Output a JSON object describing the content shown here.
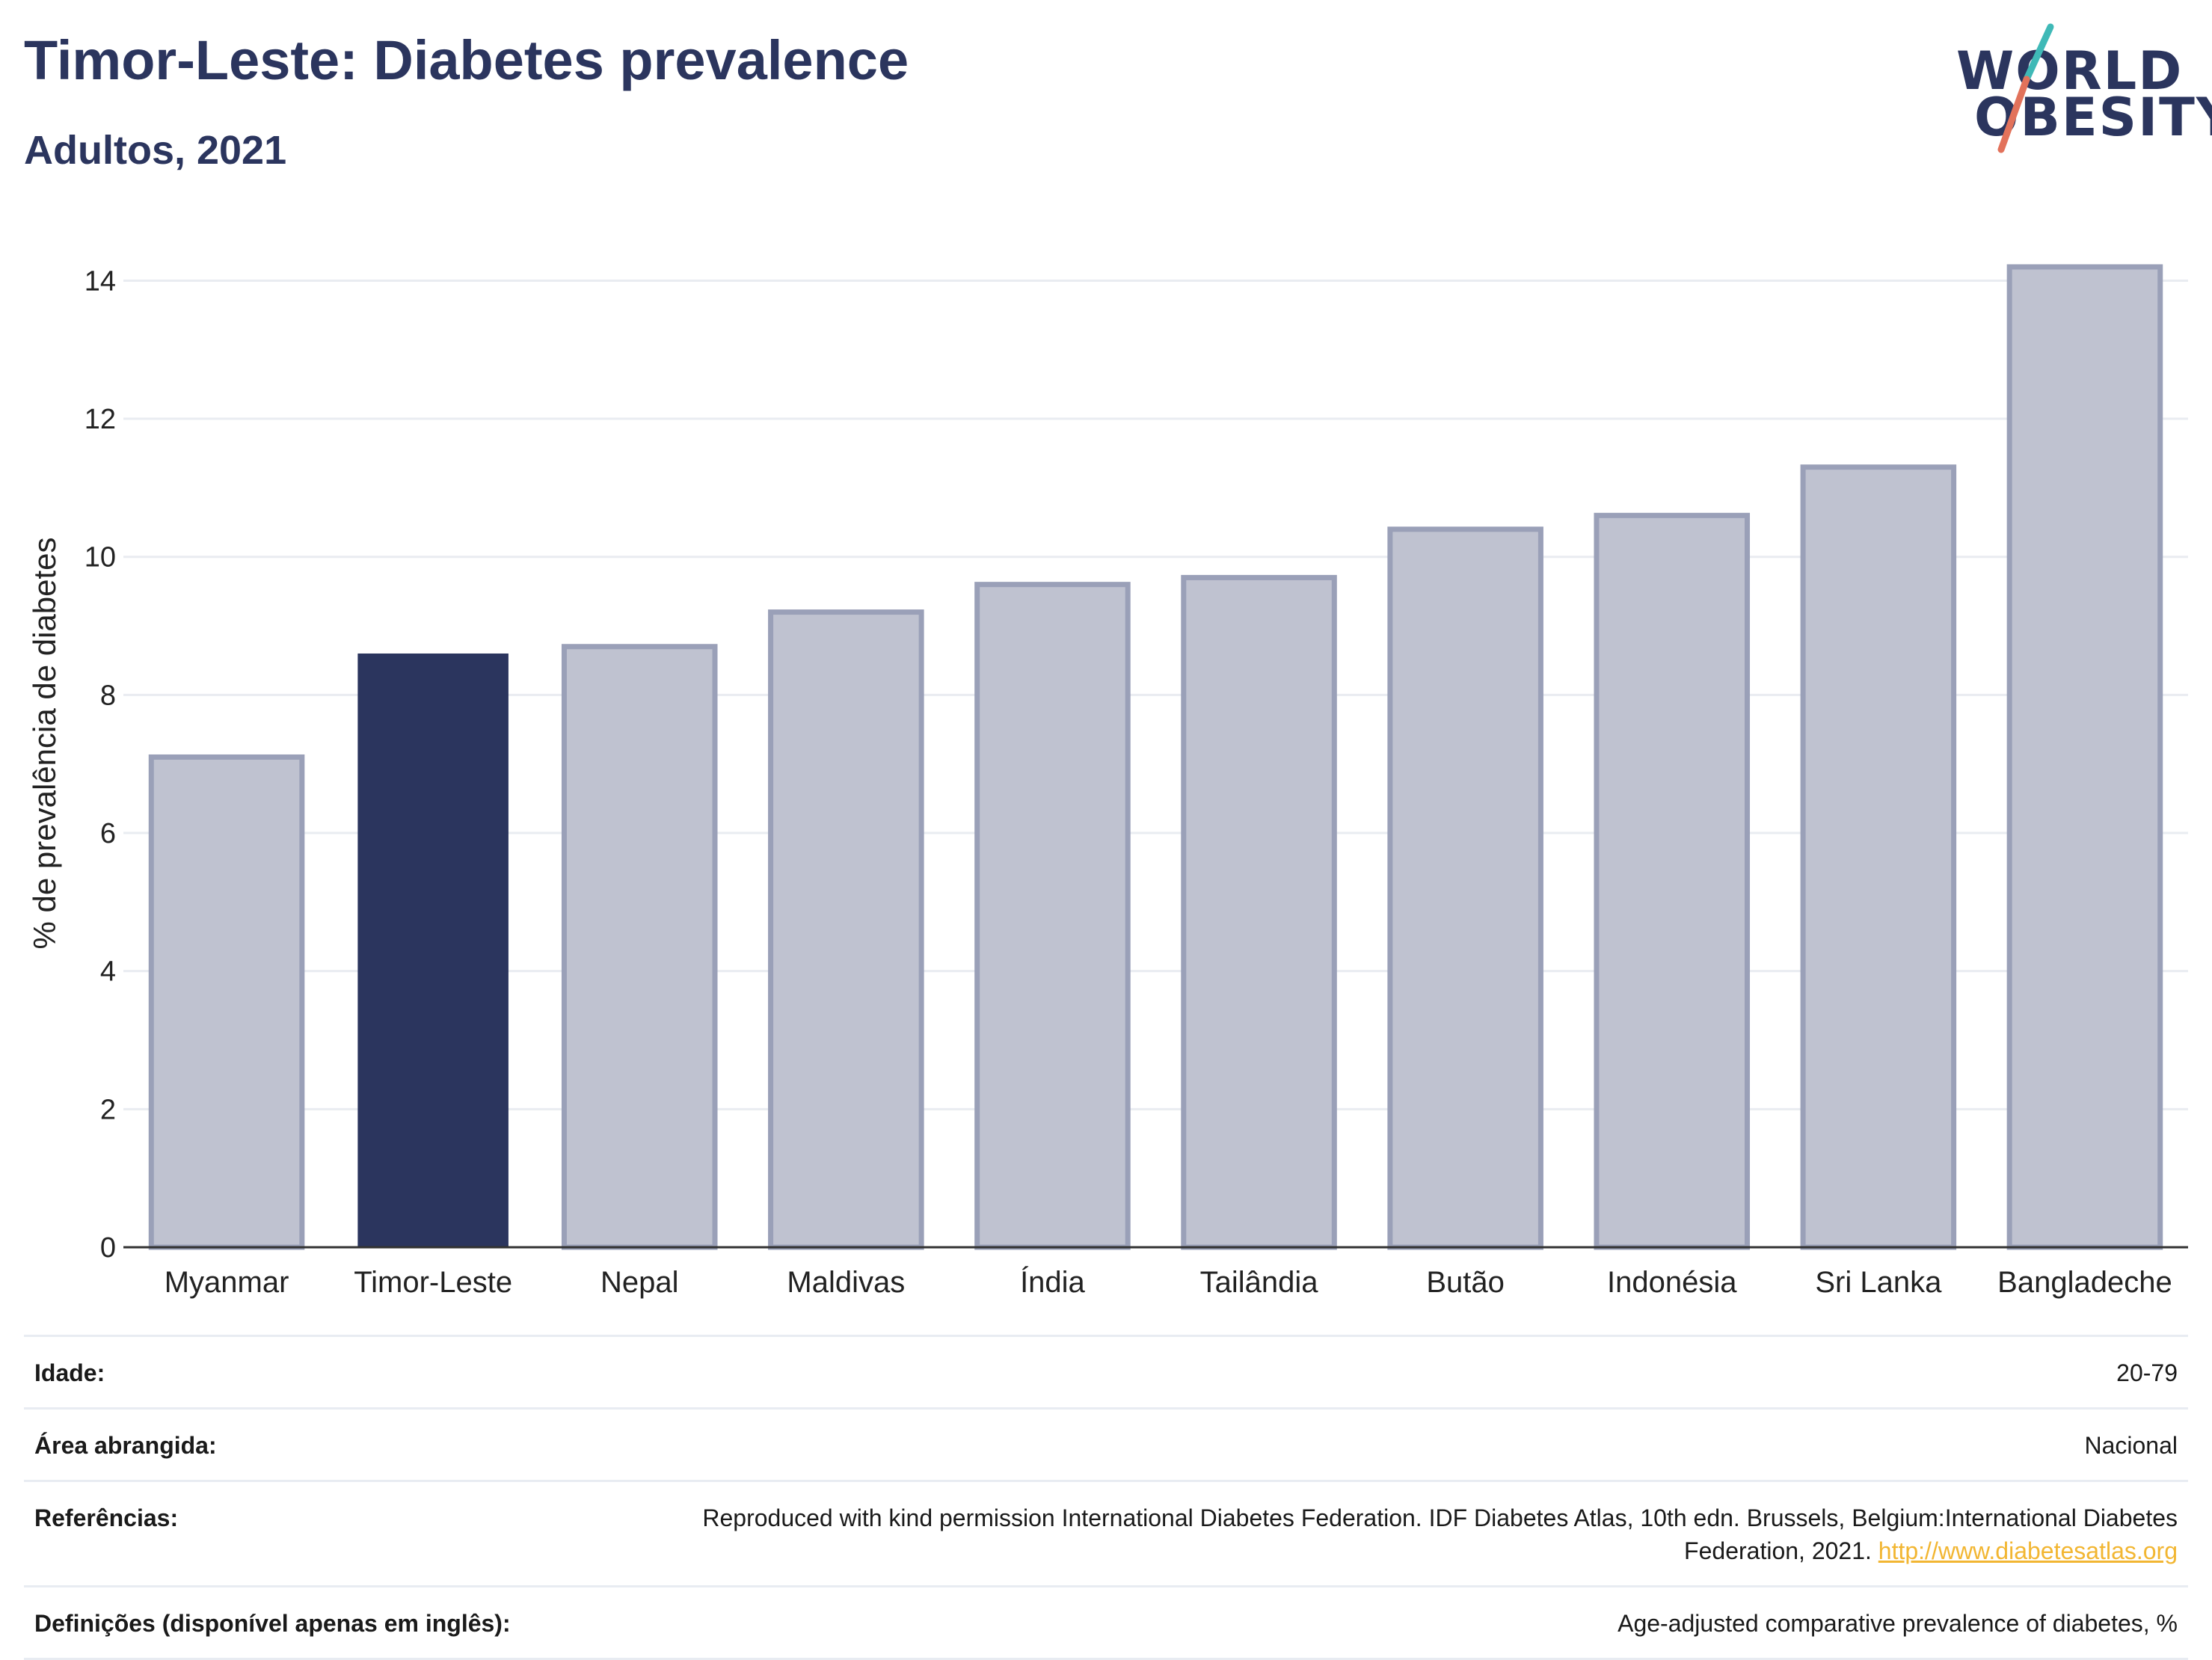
{
  "header": {
    "title": "Timor-Leste: Diabetes prevalence",
    "subtitle": "Adultos, 2021"
  },
  "logo": {
    "line1": "WORLD",
    "line2": "OBESITY",
    "slash_colors": [
      "#3fb9b7",
      "#e2725b"
    ]
  },
  "colors": {
    "highlight": "#2b355e",
    "other_fill": "#bfc2d0",
    "other_stroke": "#9aa0b8",
    "grid": "#e9ecf1",
    "axis": "#333333",
    "link": "#f2b632"
  },
  "chart_data": {
    "type": "bar",
    "ylabel": "% de prevalência de diabetes",
    "xlabel": "",
    "ylim": [
      0,
      14.6
    ],
    "yticks": [
      0,
      2,
      4,
      6,
      8,
      10,
      12,
      14
    ],
    "grid": true,
    "highlight": "Timor-Leste",
    "categories": [
      "Myanmar",
      "Timor-Leste",
      "Nepal",
      "Maldivas",
      "Índia",
      "Tailândia",
      "Butão",
      "Indonésia",
      "Sri Lanka",
      "Bangladeche"
    ],
    "values": [
      7.1,
      8.6,
      8.7,
      9.2,
      9.6,
      9.7,
      10.4,
      10.6,
      11.3,
      14.2
    ]
  },
  "info": {
    "rows": [
      {
        "label": "Idade:",
        "value": "20-79"
      },
      {
        "label": "Área abrangida:",
        "value": "Nacional"
      },
      {
        "label": "Referências:",
        "value": "Reproduced with kind permission International Diabetes Federation.  IDF Diabetes Atlas, 10th edn. Brussels, Belgium:International Diabetes Federation, 2021.",
        "link": "http://www.diabetesatlas.org"
      },
      {
        "label": "Definições (disponível apenas em inglês):",
        "value": "Age-adjusted comparative prevalence of diabetes, %"
      }
    ]
  }
}
